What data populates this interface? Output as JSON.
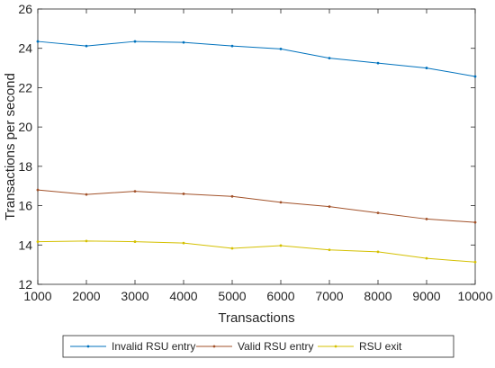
{
  "chart_data": {
    "type": "line",
    "title": "",
    "xlabel": "Transactions",
    "ylabel": "Transactions per second",
    "x": [
      1000,
      2000,
      3000,
      4000,
      5000,
      6000,
      7000,
      8000,
      9000,
      10000
    ],
    "xlim": [
      1000,
      10000
    ],
    "ylim": [
      12,
      26
    ],
    "xticks": [
      1000,
      2000,
      3000,
      4000,
      5000,
      6000,
      7000,
      8000,
      9000,
      10000
    ],
    "yticks": [
      12,
      14,
      16,
      18,
      20,
      22,
      24,
      26
    ],
    "grid": false,
    "legend": "bottom",
    "series": [
      {
        "name": "Invalid RSU entry",
        "color": "#0072BD",
        "values": [
          24.35,
          24.12,
          24.35,
          24.3,
          24.12,
          23.97,
          23.5,
          23.25,
          23.0,
          22.57
        ]
      },
      {
        "name": "Valid RSU entry",
        "color": "#A2522A",
        "values": [
          16.8,
          16.57,
          16.73,
          16.6,
          16.47,
          16.17,
          15.95,
          15.63,
          15.32,
          15.15
        ]
      },
      {
        "name": "RSU exit",
        "color": "#D4C000",
        "values": [
          14.17,
          14.2,
          14.17,
          14.1,
          13.83,
          13.97,
          13.75,
          13.65,
          13.32,
          13.13
        ]
      }
    ]
  }
}
